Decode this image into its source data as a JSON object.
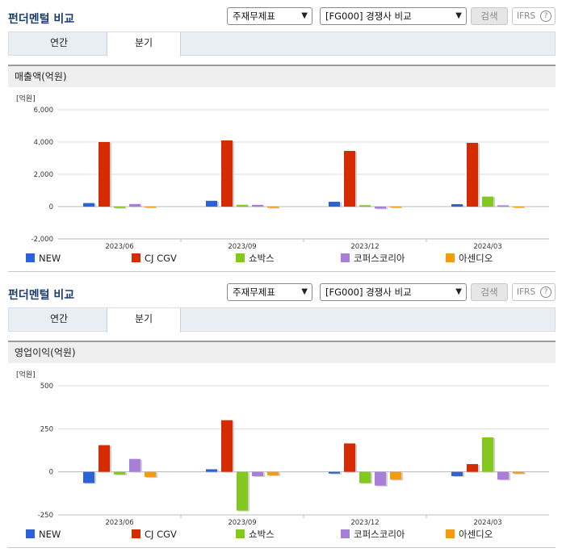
{
  "header": {
    "title": "펀더멘털 비교",
    "select1": "주재무제표",
    "select2": "[FG000] 경쟁사 비교",
    "search": "검색",
    "ifrs": "IFRS",
    "ifrs_help": "?"
  },
  "tabs": [
    "연간",
    "분기"
  ],
  "series_colors": [
    "#2a62d8",
    "#d42c00",
    "#82c91e",
    "#a77ed8",
    "#f59a12"
  ],
  "charts": [
    {
      "section_title": "매출액(억원)"
    },
    {
      "section_title": "영업이익(억원)"
    }
  ],
  "chart_data": [
    {
      "type": "bar",
      "title": "매출액(억원)",
      "unit_label": "[억원]",
      "categories": [
        "2023/06",
        "2023/09",
        "2023/12",
        "2024/03"
      ],
      "ylim": [
        -2000,
        6000
      ],
      "yticks": [
        -2000,
        0,
        2000,
        4000,
        6000
      ],
      "ytick_labels": [
        "-2,000",
        "0",
        "2,000",
        "4,000",
        "6,000"
      ],
      "grid": true,
      "legend_position": "bottom",
      "series": [
        {
          "name": "NEW",
          "values": [
            220,
            360,
            300,
            150
          ]
        },
        {
          "name": "CJ CGV",
          "values": [
            4000,
            4100,
            3450,
            3950
          ]
        },
        {
          "name": "쇼박스",
          "values": [
            -80,
            110,
            90,
            620
          ]
        },
        {
          "name": "코퍼스코리아",
          "values": [
            160,
            110,
            -120,
            80
          ]
        },
        {
          "name": "아센디오",
          "values": [
            -40,
            -70,
            -20,
            -20
          ]
        }
      ]
    },
    {
      "type": "bar",
      "title": "영업이익(억원)",
      "unit_label": "[억원]",
      "categories": [
        "2023/06",
        "2023/09",
        "2023/12",
        "2024/03"
      ],
      "ylim": [
        -250,
        500
      ],
      "yticks": [
        -250,
        0,
        250,
        500
      ],
      "ytick_labels": [
        "-250",
        "0",
        "250",
        "500"
      ],
      "grid": true,
      "legend_position": "bottom",
      "series": [
        {
          "name": "NEW",
          "values": [
            -65,
            15,
            -10,
            -25
          ]
        },
        {
          "name": "CJ CGV",
          "values": [
            155,
            300,
            165,
            45
          ]
        },
        {
          "name": "쇼박스",
          "values": [
            -15,
            -225,
            -65,
            200
          ]
        },
        {
          "name": "코퍼스코리아",
          "values": [
            75,
            -25,
            -80,
            -45
          ]
        },
        {
          "name": "아센디오",
          "values": [
            -30,
            -20,
            -45,
            -10
          ]
        }
      ]
    }
  ]
}
